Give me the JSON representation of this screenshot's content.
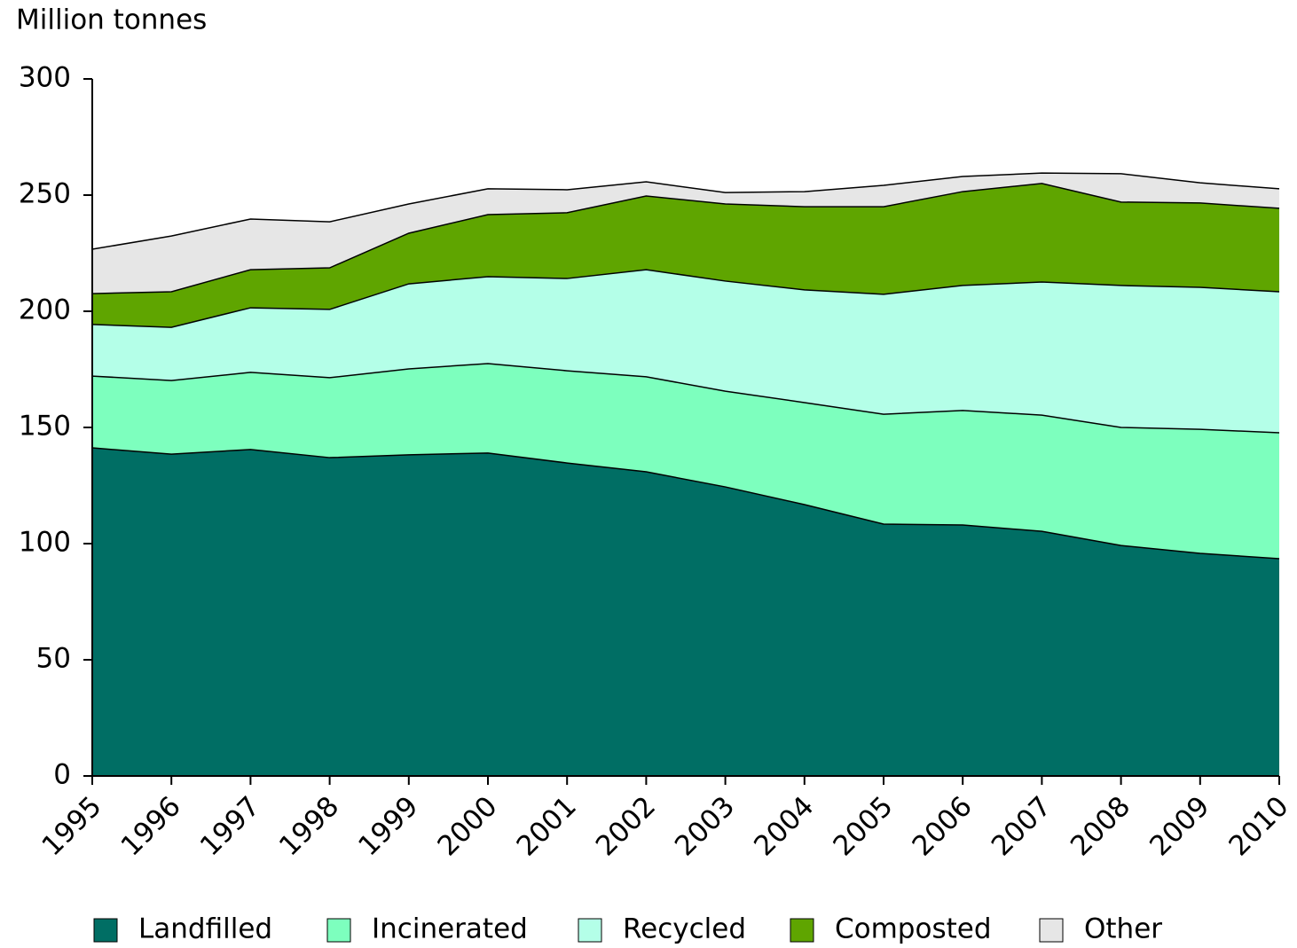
{
  "chart_data": {
    "type": "stacked_area",
    "y_axis_title": "Million tonnes",
    "categories": [
      "1995",
      "1996",
      "1997",
      "1998",
      "1999",
      "2000",
      "2001",
      "2002",
      "2003",
      "2004",
      "2005",
      "2006",
      "2007",
      "2008",
      "2009",
      "2010"
    ],
    "series": [
      {
        "name": "Landfilled",
        "color": "#006e64",
        "values": [
          141.2,
          138.5,
          140.5,
          137,
          138.2,
          139,
          134.7,
          130.9,
          124.4,
          116.8,
          108.4,
          108,
          105.3,
          99.2,
          95.8,
          93.5
        ]
      },
      {
        "name": "Incinerated",
        "color": "#7dffbe",
        "values": [
          30.9,
          31.7,
          33.2,
          34.4,
          37,
          38.5,
          39.7,
          40.9,
          41.2,
          43.9,
          47.3,
          49.3,
          50,
          50.8,
          53.4,
          54.2
        ]
      },
      {
        "name": "Recycled",
        "color": "#b4ffe8",
        "values": [
          22.2,
          22.9,
          27.8,
          29.4,
          36.6,
          37.4,
          39.7,
          46.1,
          47.4,
          48.5,
          51.6,
          53.8,
          57.3,
          61.1,
          61.1,
          60.7
        ]
      },
      {
        "name": "Composted",
        "color": "#5fa500",
        "values": [
          13.3,
          15.3,
          16.4,
          17.9,
          21.8,
          26.7,
          28.3,
          31.7,
          33.2,
          35.8,
          37.7,
          40.4,
          42.4,
          35.9,
          36.3,
          35.9
        ]
      },
      {
        "name": "Other",
        "color": "#e6e6e6",
        "values": [
          19.1,
          24,
          21.8,
          19.8,
          12.6,
          11.1,
          9.9,
          6.1,
          4.9,
          6.5,
          9.2,
          6.5,
          4.5,
          12.2,
          8.7,
          8.4
        ]
      }
    ],
    "ylim": [
      0,
      300
    ],
    "yticks": [
      0,
      50,
      100,
      150,
      200,
      250,
      300
    ],
    "grid": false,
    "legend": "bottom"
  }
}
